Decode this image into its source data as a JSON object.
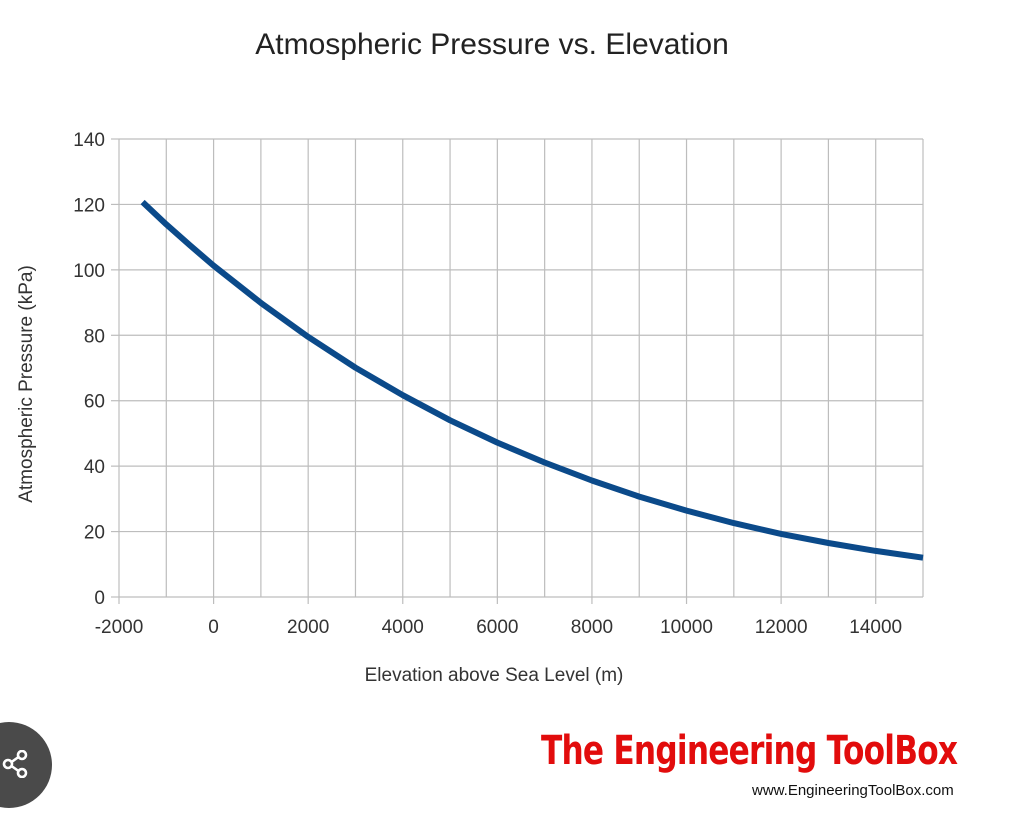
{
  "chart_data": {
    "type": "line",
    "title": "Atmospheric Pressure vs. Elevation",
    "xlabel": "Elevation above Sea Level (m)",
    "ylabel": "Atmospheric Pressure (kPa)",
    "xlim": [
      -2000,
      15000
    ],
    "ylim": [
      0,
      140
    ],
    "xticks": [
      -2000,
      0,
      2000,
      4000,
      6000,
      8000,
      10000,
      12000,
      14000
    ],
    "yticks": [
      0,
      20,
      40,
      60,
      80,
      100,
      120,
      140
    ],
    "grid": true,
    "line_color": "#0b4a8a",
    "series": [
      {
        "x": [
          -1500,
          -1000,
          -500,
          0,
          1000,
          2000,
          3000,
          4000,
          5000,
          6000,
          7000,
          8000,
          9000,
          10000,
          11000,
          12000,
          13000,
          14000,
          15000
        ],
        "y": [
          120.7,
          113.9,
          107.5,
          101.3,
          89.9,
          79.5,
          70.1,
          61.7,
          54.0,
          47.2,
          41.1,
          35.6,
          30.7,
          26.4,
          22.6,
          19.3,
          16.5,
          14.1,
          12.0
        ]
      }
    ]
  },
  "branding": {
    "logo_text": "The Engineering ToolBox",
    "website": "www.EngineeringToolBox.com",
    "logo_color": "#e20c0c"
  },
  "overlay": {
    "share_icon": "share-icon"
  }
}
